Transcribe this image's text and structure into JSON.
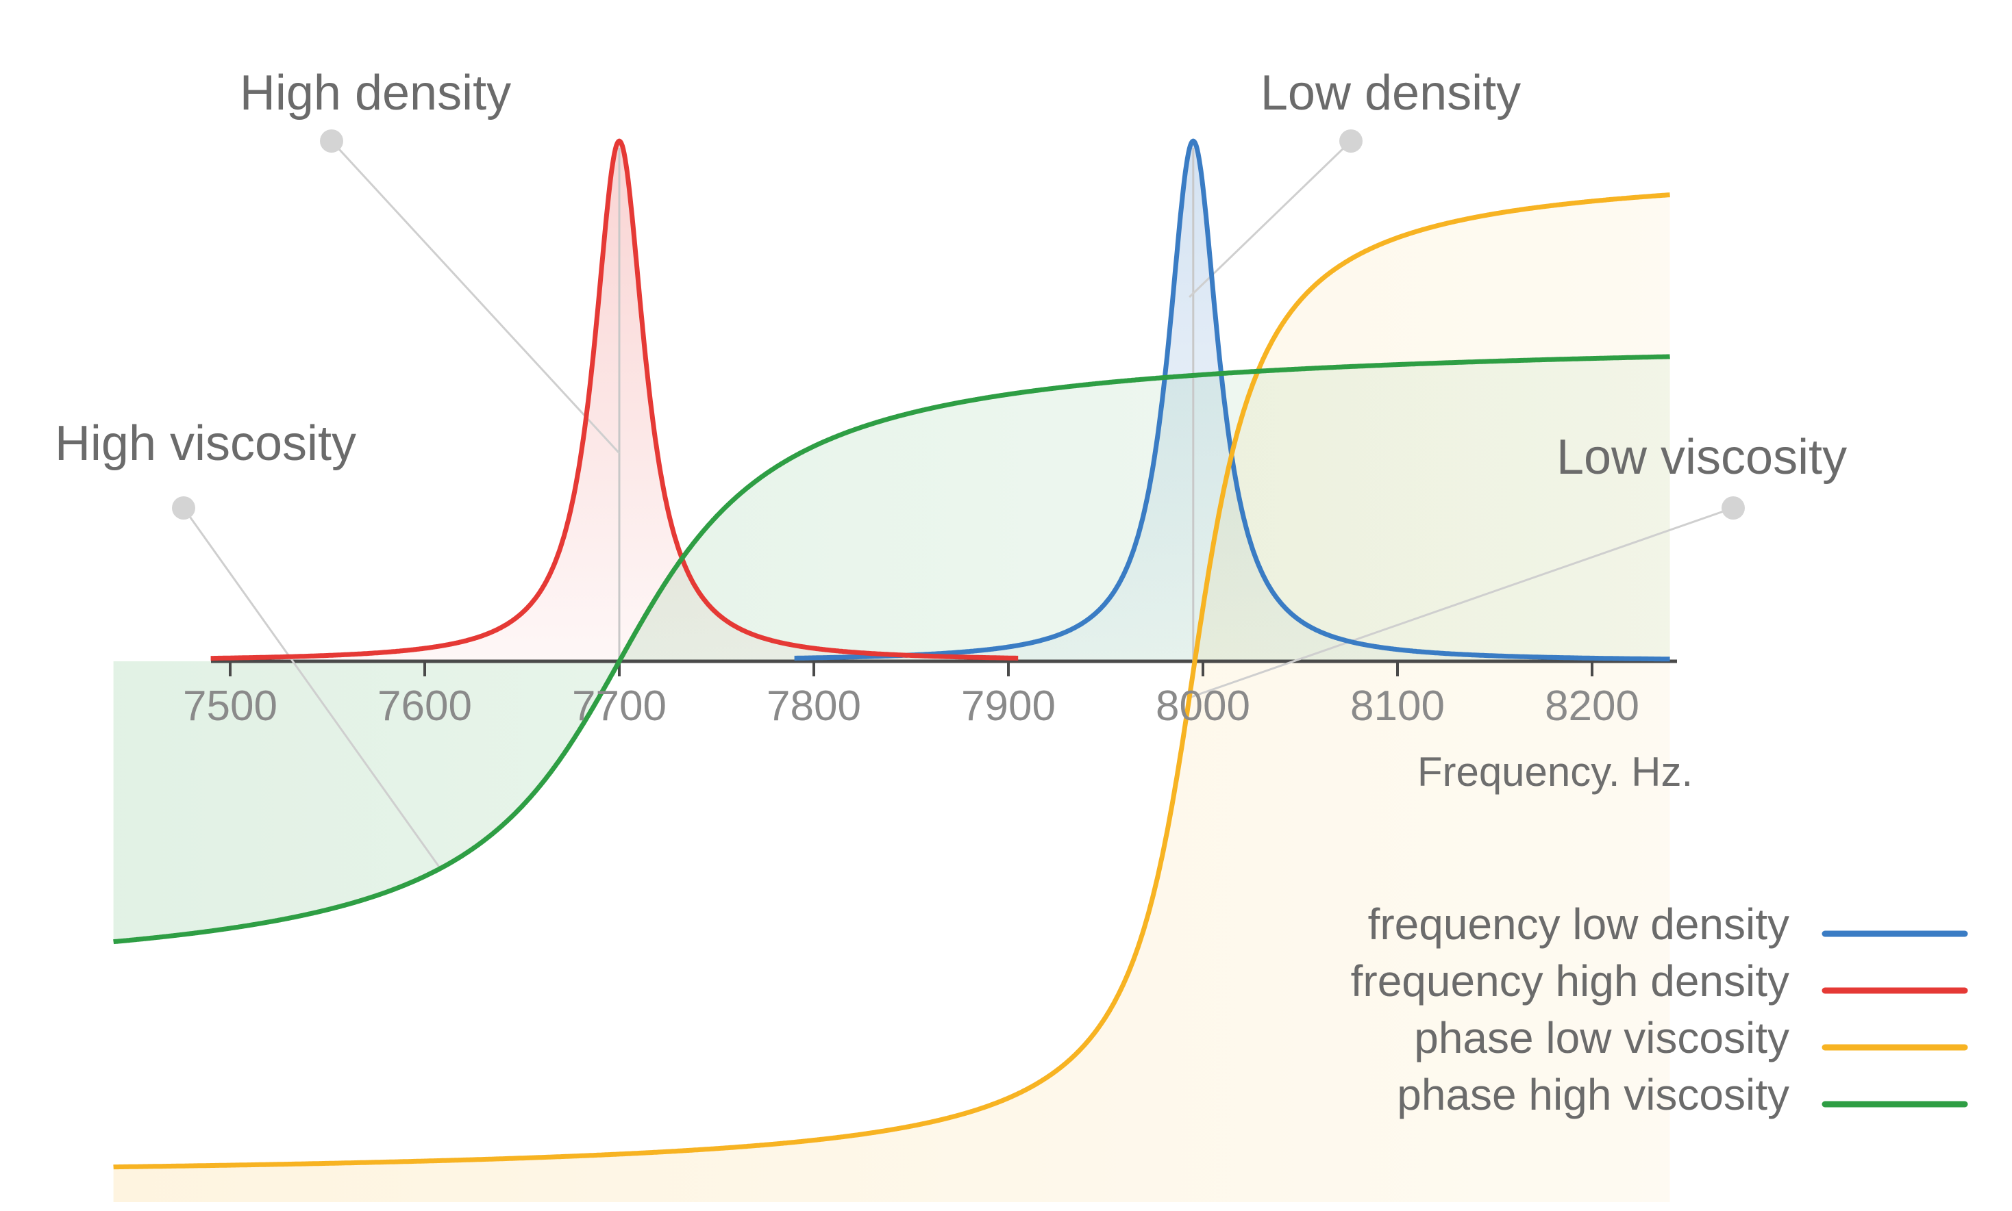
{
  "chart_data": {
    "type": "line",
    "title": "",
    "xlabel": "Frequency. Hz.",
    "ylabel": "",
    "xlim": [
      7440,
      8240
    ],
    "ylim": [
      -1,
      1.02
    ],
    "xticks": [
      7500,
      7600,
      7700,
      7800,
      7900,
      8000,
      8100,
      8200
    ],
    "grid": false,
    "legend_position": "bottom-right",
    "series": [
      {
        "name": "frequency low density",
        "color": "#3a7cc4",
        "kind": "resonance",
        "center": 7995,
        "width": 16,
        "peak": 1.0,
        "x_range": [
          7790,
          8240
        ]
      },
      {
        "name": "frequency high density",
        "color": "#e53935",
        "kind": "resonance",
        "center": 7700,
        "width": 16,
        "peak": 1.0,
        "x_range": [
          7490,
          7905
        ]
      },
      {
        "name": "phase low viscosity",
        "color": "#f7b322",
        "kind": "phase",
        "center": 7995,
        "scale": 25,
        "low": -1.0,
        "high": 0.96,
        "x_range": [
          7440,
          8240
        ]
      },
      {
        "name": "phase high viscosity",
        "color": "#2e9e44",
        "kind": "phase",
        "center": 7700,
        "scale": 60,
        "low": -0.63,
        "high": 0.63,
        "x_range": [
          7440,
          8240
        ]
      }
    ],
    "annotations": [
      {
        "label": "High density",
        "series": 1,
        "x": 7700,
        "anchor": "top-left"
      },
      {
        "label": "Low density",
        "series": 0,
        "x": 7995,
        "anchor": "top-right"
      },
      {
        "label": "High viscosity",
        "series": 3,
        "x": 7608,
        "anchor": "left"
      },
      {
        "label": "Low viscosity",
        "series": 2,
        "x": 7993,
        "anchor": "right"
      }
    ]
  }
}
